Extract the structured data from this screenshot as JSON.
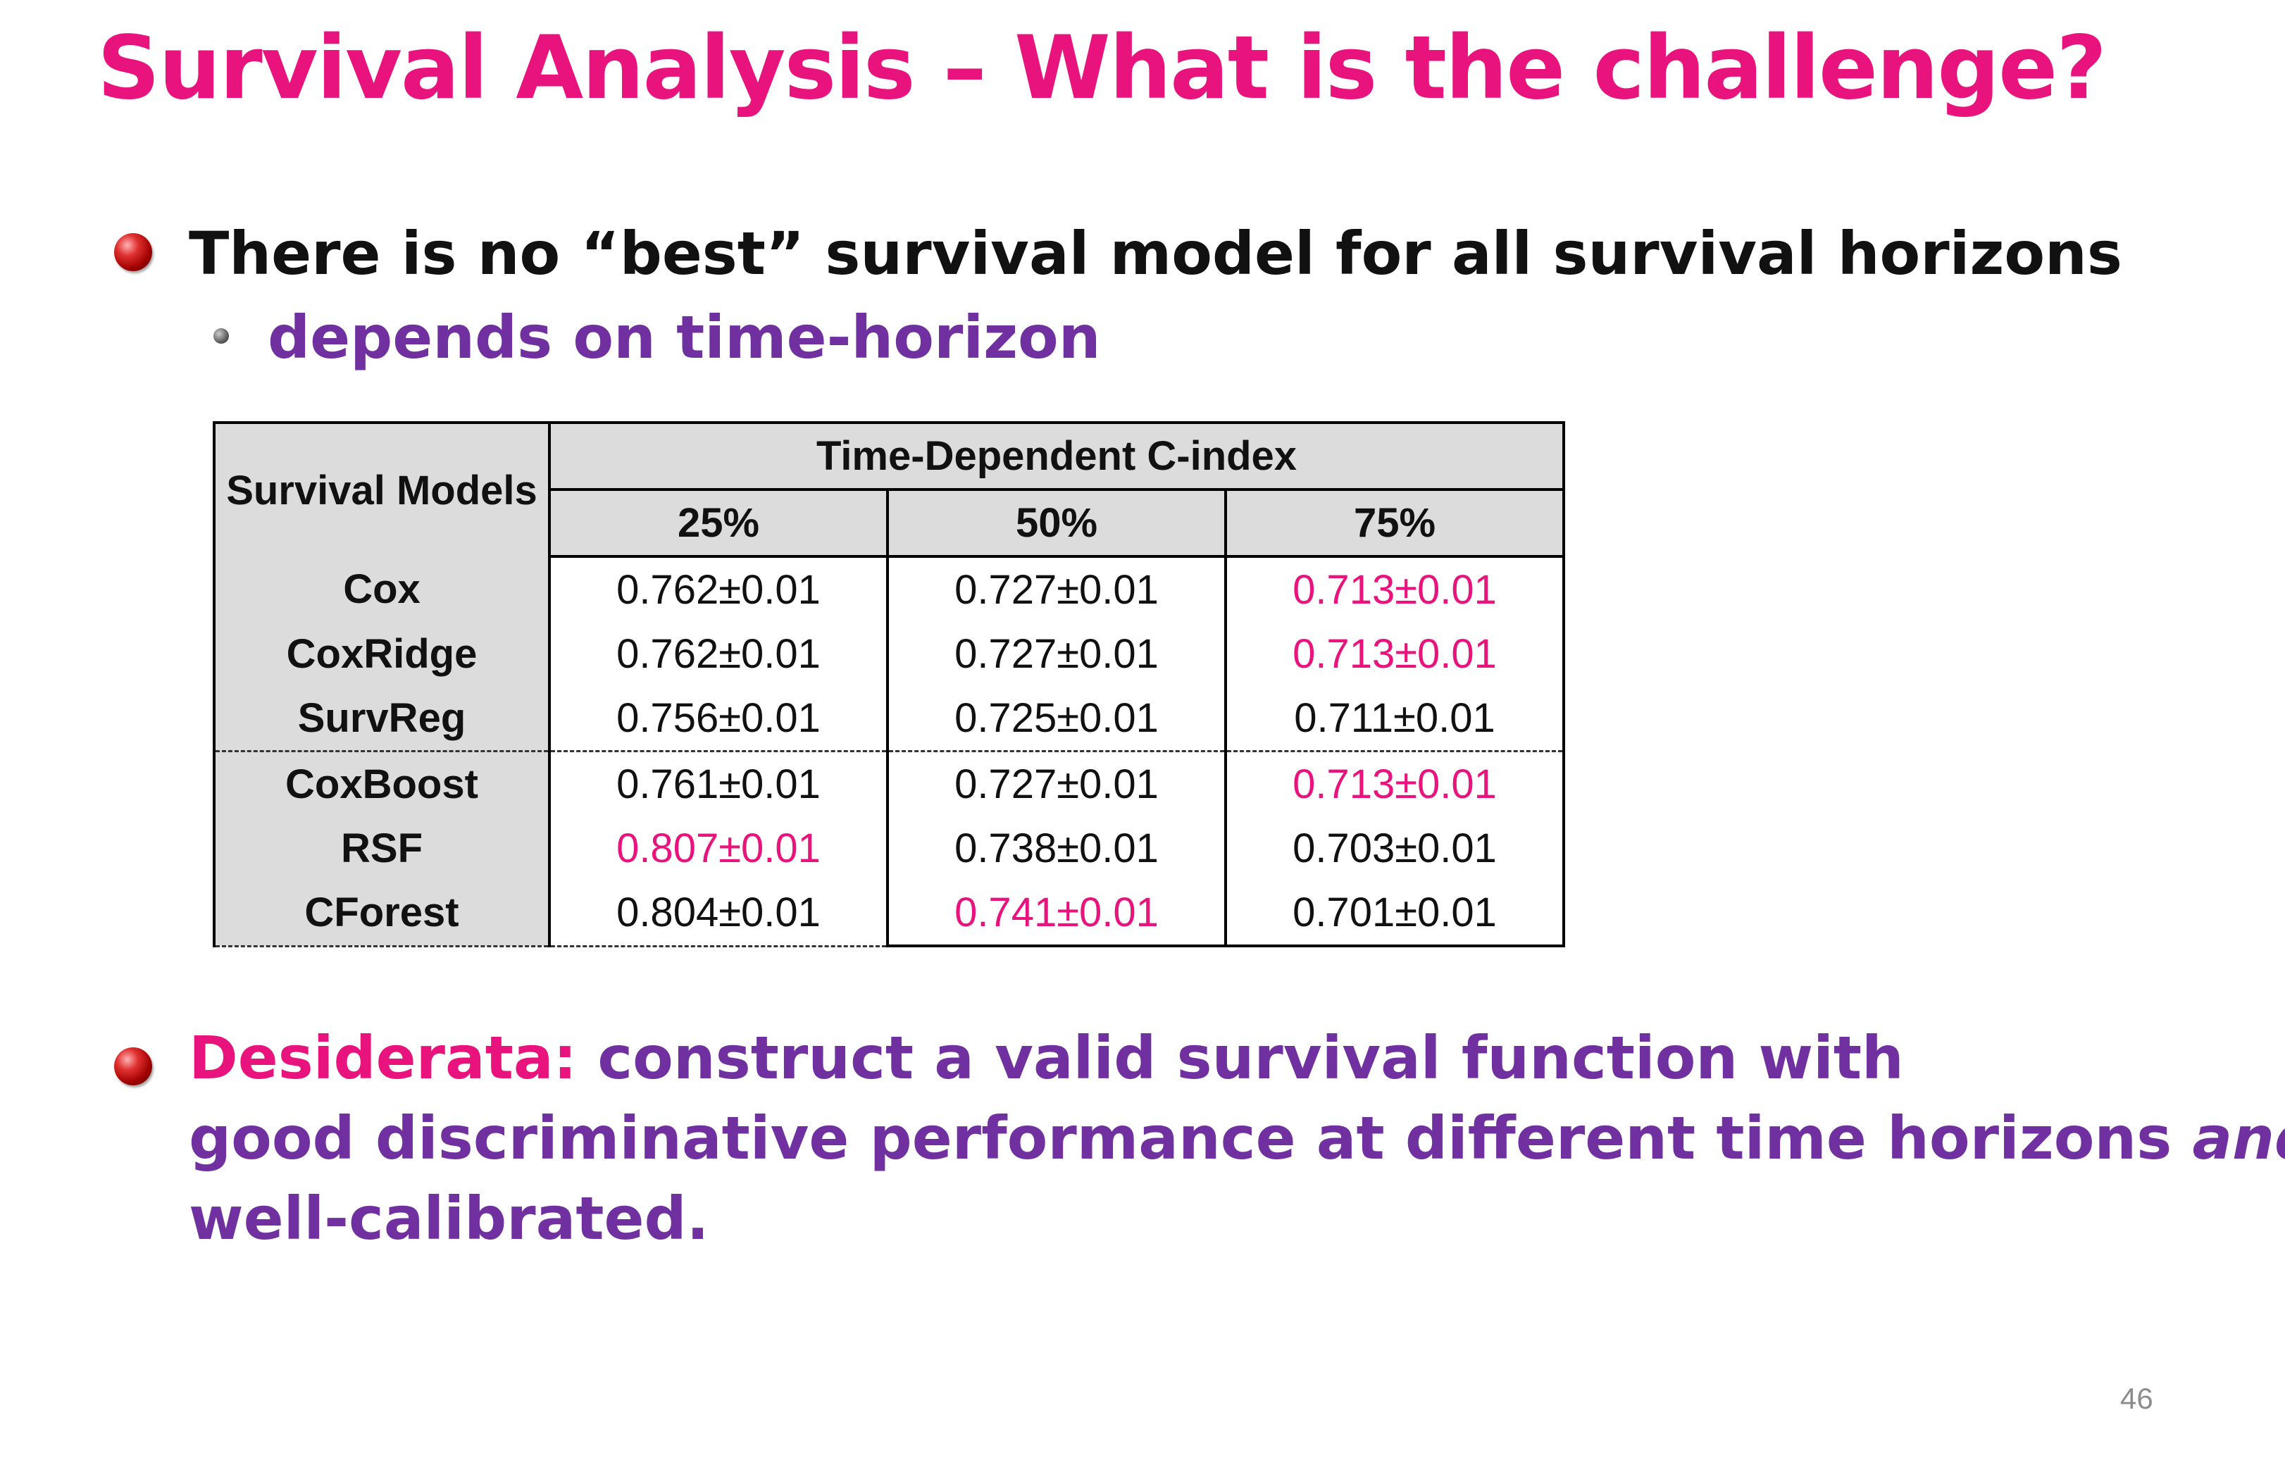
{
  "title": "Survival Analysis – What is the challenge?",
  "bullet1": {
    "text": "There is no “best” survival model for all survival horizons",
    "sub": "depends on time-horizon"
  },
  "table": {
    "model_header": "Survival Models",
    "group_header": "Time-Dependent C-index",
    "columns": [
      "25%",
      "50%",
      "75%"
    ],
    "rows": [
      {
        "model": "Cox",
        "values": [
          "0.762±0.01",
          "0.727±0.01",
          "0.713±0.01"
        ]
      },
      {
        "model": "CoxRidge",
        "values": [
          "0.762±0.01",
          "0.727±0.01",
          "0.713±0.01"
        ]
      },
      {
        "model": "SurvReg",
        "values": [
          "0.756±0.01",
          "0.725±0.01",
          "0.711±0.01"
        ]
      },
      {
        "model": "CoxBoost",
        "values": [
          "0.761±0.01",
          "0.727±0.01",
          "0.713±0.01"
        ]
      },
      {
        "model": "RSF",
        "values": [
          "0.807±0.01",
          "0.738±0.01",
          "0.703±0.01"
        ]
      },
      {
        "model": "CForest",
        "values": [
          "0.804±0.01",
          "0.741±0.01",
          "0.701±0.01"
        ]
      }
    ],
    "highlight_color": "#e8137d"
  },
  "desiderata": {
    "label": "Desiderata:",
    "line1": "construct a valid survival function with",
    "line2_main": "good discriminative performance at different time horizons ",
    "line2_italic": "and",
    "line3": "well-calibrated."
  },
  "page_number": "46"
}
